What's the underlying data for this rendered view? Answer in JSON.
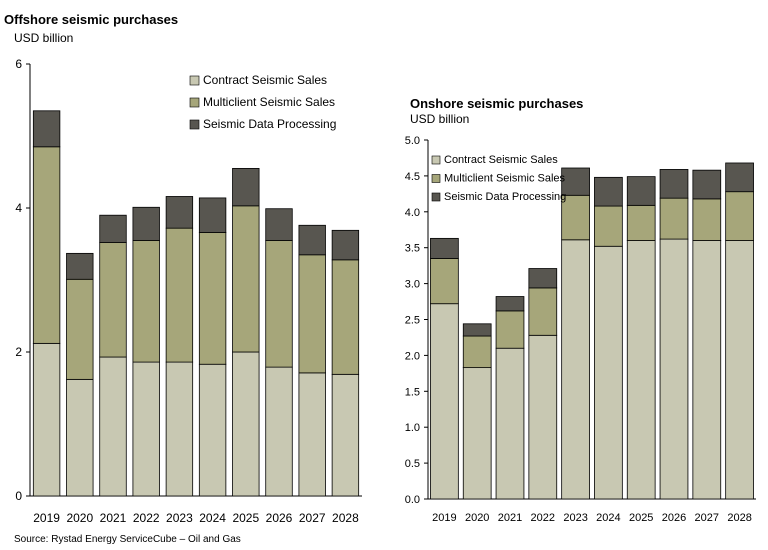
{
  "source": "Source: Rystad Energy ServiceCube – Oil and Gas",
  "chart_data": [
    {
      "type": "bar",
      "stacked": true,
      "title": "Offshore seismic purchases",
      "unit_label": "USD billion",
      "categories": [
        "2019",
        "2020",
        "2021",
        "2022",
        "2023",
        "2024",
        "2025",
        "2026",
        "2027",
        "2028"
      ],
      "ylim": [
        0,
        6
      ],
      "yticks": [
        "0",
        "2",
        "4",
        "6"
      ],
      "grid": false,
      "legend_position": "top-right",
      "series": [
        {
          "name": "Contract Seismic Sales",
          "color": "#c8c8b2",
          "values": [
            2.12,
            1.62,
            1.93,
            1.86,
            1.86,
            1.83,
            2.0,
            1.79,
            1.71,
            1.69
          ]
        },
        {
          "name": "Multiclient Seismic Sales",
          "color": "#a6a67a",
          "values": [
            2.73,
            1.39,
            1.59,
            1.69,
            1.86,
            1.83,
            2.03,
            1.76,
            1.64,
            1.59
          ]
        },
        {
          "name": "Seismic Data Processing",
          "color": "#585650",
          "values": [
            0.5,
            0.36,
            0.38,
            0.46,
            0.44,
            0.48,
            0.52,
            0.44,
            0.41,
            0.41
          ]
        }
      ]
    },
    {
      "type": "bar",
      "stacked": true,
      "title": "Onshore seismic purchases",
      "unit_label": "USD billion",
      "categories": [
        "2019",
        "2020",
        "2021",
        "2022",
        "2023",
        "2024",
        "2025",
        "2026",
        "2027",
        "2028"
      ],
      "ylim": [
        0,
        5
      ],
      "yticks": [
        "0.0",
        "0.5",
        "1.0",
        "1.5",
        "2.0",
        "2.5",
        "3.0",
        "3.5",
        "4.0",
        "4.5",
        "5.0"
      ],
      "grid": false,
      "legend_position": "top-left",
      "series": [
        {
          "name": "Contract Seismic Sales",
          "color": "#c8c8b2",
          "values": [
            2.72,
            1.83,
            2.1,
            2.28,
            3.61,
            3.52,
            3.6,
            3.62,
            3.6,
            3.6
          ]
        },
        {
          "name": "Multiclient Seismic Sales",
          "color": "#a6a67a",
          "values": [
            0.63,
            0.44,
            0.52,
            0.66,
            0.62,
            0.56,
            0.49,
            0.57,
            0.58,
            0.68
          ]
        },
        {
          "name": "Seismic Data Processing",
          "color": "#585650",
          "values": [
            0.28,
            0.17,
            0.2,
            0.27,
            0.38,
            0.4,
            0.4,
            0.4,
            0.4,
            0.4
          ]
        }
      ]
    }
  ]
}
